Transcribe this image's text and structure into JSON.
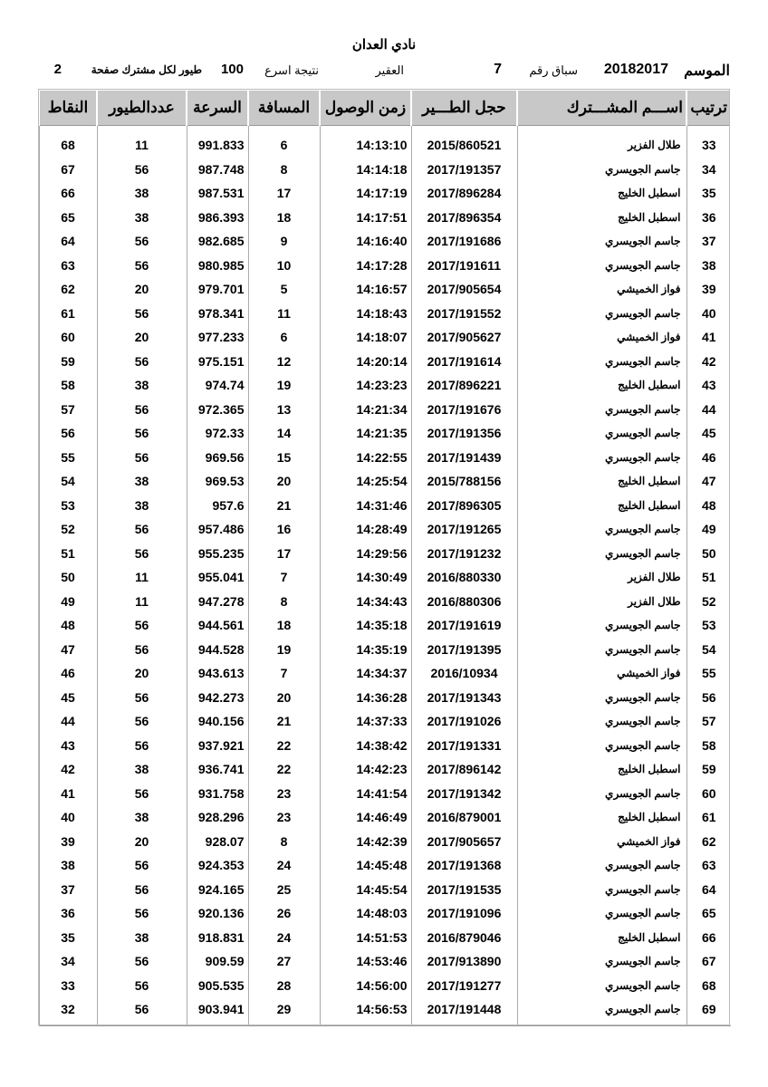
{
  "title": "نادي العدان",
  "info": {
    "season_label": "الموسم",
    "season_value": "20182017",
    "race_label": "سباق رقم",
    "race_value": "7",
    "location": "العقير",
    "result_label": "نتيجة اسرع",
    "result_value": "100",
    "per_label": "طيور لكل مشترك صفحة",
    "page_value": "2"
  },
  "columns": [
    "ترتيب",
    "اســـم المشـــترك",
    "حجل الطـــير",
    "زمن الوصول",
    "المسافة",
    "السرعة",
    "عددالطيور",
    "النقاط"
  ],
  "rows": [
    [
      "33",
      "طلال الفزير",
      "2015/860521",
      "14:13:10",
      "6",
      "991.833",
      "11",
      "68"
    ],
    [
      "34",
      "جاسم الجويسري",
      "2017/191357",
      "14:14:18",
      "8",
      "987.748",
      "56",
      "67"
    ],
    [
      "35",
      "اسطبل الخليج",
      "2017/896284",
      "14:17:19",
      "17",
      "987.531",
      "38",
      "66"
    ],
    [
      "36",
      "اسطبل الخليج",
      "2017/896354",
      "14:17:51",
      "18",
      "986.393",
      "38",
      "65"
    ],
    [
      "37",
      "جاسم الجويسري",
      "2017/191686",
      "14:16:40",
      "9",
      "982.685",
      "56",
      "64"
    ],
    [
      "38",
      "جاسم الجويسري",
      "2017/191611",
      "14:17:28",
      "10",
      "980.985",
      "56",
      "63"
    ],
    [
      "39",
      "فواز الخميشي",
      "2017/905654",
      "14:16:57",
      "5",
      "979.701",
      "20",
      "62"
    ],
    [
      "40",
      "جاسم الجويسري",
      "2017/191552",
      "14:18:43",
      "11",
      "978.341",
      "56",
      "61"
    ],
    [
      "41",
      "فواز الخميشي",
      "2017/905627",
      "14:18:07",
      "6",
      "977.233",
      "20",
      "60"
    ],
    [
      "42",
      "جاسم الجويسري",
      "2017/191614",
      "14:20:14",
      "12",
      "975.151",
      "56",
      "59"
    ],
    [
      "43",
      "اسطبل الخليج",
      "2017/896221",
      "14:23:23",
      "19",
      "974.74",
      "38",
      "58"
    ],
    [
      "44",
      "جاسم الجويسري",
      "2017/191676",
      "14:21:34",
      "13",
      "972.365",
      "56",
      "57"
    ],
    [
      "45",
      "جاسم الجويسري",
      "2017/191356",
      "14:21:35",
      "14",
      "972.33",
      "56",
      "56"
    ],
    [
      "46",
      "جاسم الجويسري",
      "2017/191439",
      "14:22:55",
      "15",
      "969.56",
      "56",
      "55"
    ],
    [
      "47",
      "اسطبل الخليج",
      "2015/788156",
      "14:25:54",
      "20",
      "969.53",
      "38",
      "54"
    ],
    [
      "48",
      "اسطبل الخليج",
      "2017/896305",
      "14:31:46",
      "21",
      "957.6",
      "38",
      "53"
    ],
    [
      "49",
      "جاسم الجويسري",
      "2017/191265",
      "14:28:49",
      "16",
      "957.486",
      "56",
      "52"
    ],
    [
      "50",
      "جاسم الجويسري",
      "2017/191232",
      "14:29:56",
      "17",
      "955.235",
      "56",
      "51"
    ],
    [
      "51",
      "طلال الفزير",
      "2016/880330",
      "14:30:49",
      "7",
      "955.041",
      "11",
      "50"
    ],
    [
      "52",
      "طلال الفزير",
      "2016/880306",
      "14:34:43",
      "8",
      "947.278",
      "11",
      "49"
    ],
    [
      "53",
      "جاسم الجويسري",
      "2017/191619",
      "14:35:18",
      "18",
      "944.561",
      "56",
      "48"
    ],
    [
      "54",
      "جاسم الجويسري",
      "2017/191395",
      "14:35:19",
      "19",
      "944.528",
      "56",
      "47"
    ],
    [
      "55",
      "فواز الخميشي",
      "2016/10934",
      "14:34:37",
      "7",
      "943.613",
      "20",
      "46"
    ],
    [
      "56",
      "جاسم الجويسري",
      "2017/191343",
      "14:36:28",
      "20",
      "942.273",
      "56",
      "45"
    ],
    [
      "57",
      "جاسم الجويسري",
      "2017/191026",
      "14:37:33",
      "21",
      "940.156",
      "56",
      "44"
    ],
    [
      "58",
      "جاسم الجويسري",
      "2017/191331",
      "14:38:42",
      "22",
      "937.921",
      "56",
      "43"
    ],
    [
      "59",
      "اسطبل الخليج",
      "2017/896142",
      "14:42:23",
      "22",
      "936.741",
      "38",
      "42"
    ],
    [
      "60",
      "جاسم الجويسري",
      "2017/191342",
      "14:41:54",
      "23",
      "931.758",
      "56",
      "41"
    ],
    [
      "61",
      "اسطبل الخليج",
      "2016/879001",
      "14:46:49",
      "23",
      "928.296",
      "38",
      "40"
    ],
    [
      "62",
      "فواز الخميشي",
      "2017/905657",
      "14:42:39",
      "8",
      "928.07",
      "20",
      "39"
    ],
    [
      "63",
      "جاسم الجويسري",
      "2017/191368",
      "14:45:48",
      "24",
      "924.353",
      "56",
      "38"
    ],
    [
      "64",
      "جاسم الجويسري",
      "2017/191535",
      "14:45:54",
      "25",
      "924.165",
      "56",
      "37"
    ],
    [
      "65",
      "جاسم الجويسري",
      "2017/191096",
      "14:48:03",
      "26",
      "920.136",
      "56",
      "36"
    ],
    [
      "66",
      "اسطبل الخليج",
      "2016/879046",
      "14:51:53",
      "24",
      "918.831",
      "38",
      "35"
    ],
    [
      "67",
      "جاسم الجويسري",
      "2017/913890",
      "14:53:46",
      "27",
      "909.59",
      "56",
      "34"
    ],
    [
      "68",
      "جاسم الجويسري",
      "2017/191277",
      "14:56:00",
      "28",
      "905.535",
      "56",
      "33"
    ],
    [
      "69",
      "جاسم الجويسري",
      "2017/191448",
      "14:56:53",
      "29",
      "903.941",
      "56",
      "32"
    ]
  ]
}
